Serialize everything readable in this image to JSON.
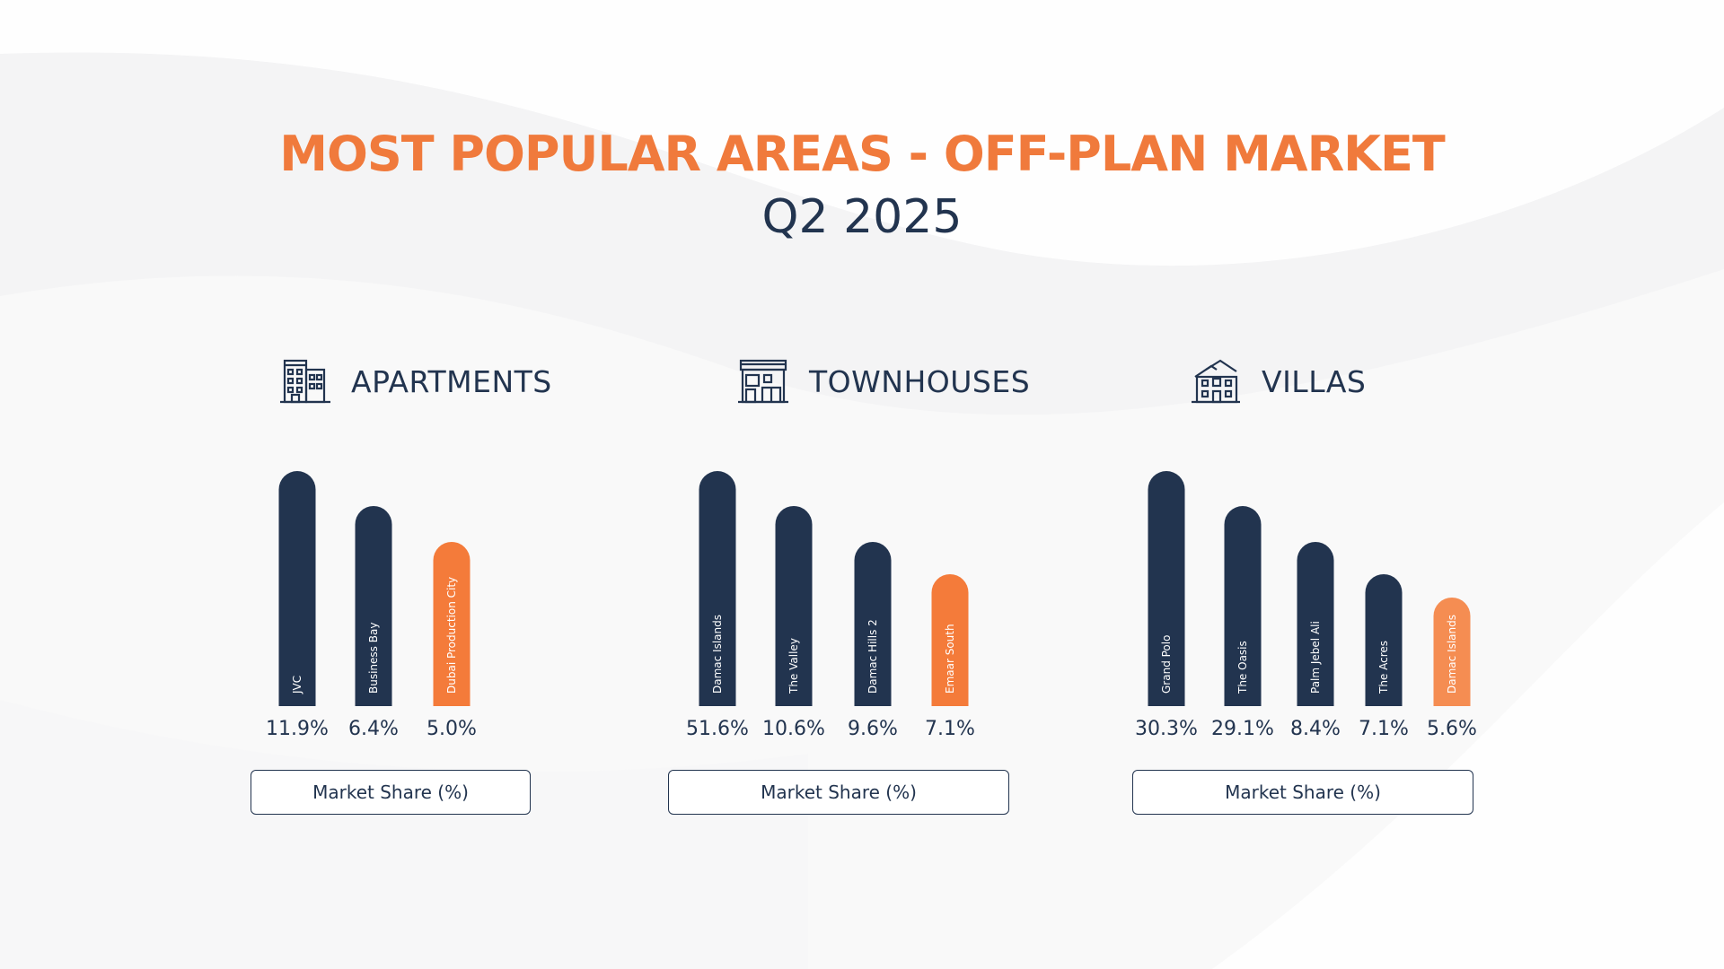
{
  "header": {
    "title": "MOST POPULAR AREAS - OFF-PLAN MARKET",
    "subtitle": "Q2 2025"
  },
  "colors": {
    "title": "#f07a3c",
    "navy": "#22344f",
    "orange": "#f47b3a",
    "light_orange": "#f58d52"
  },
  "chart_data": [
    {
      "type": "bar",
      "title": "APARTMENTS",
      "icon": "apartment-building-icon",
      "categories": [
        "JVC",
        "Business Bay",
        "Dubai Production City"
      ],
      "values": [
        11.9,
        6.4,
        5.0
      ],
      "value_labels": [
        "11.9%",
        "6.4%",
        "5.0%"
      ],
      "bar_colors": [
        "#22344f",
        "#22344f",
        "#f47b3a"
      ],
      "legend": "Market Share (%)"
    },
    {
      "type": "bar",
      "title": "TOWNHOUSES",
      "icon": "townhouse-icon",
      "categories": [
        "Damac Islands",
        "The Valley",
        "Damac Hills 2",
        "Emaar South"
      ],
      "values": [
        51.6,
        10.6,
        9.6,
        7.1
      ],
      "value_labels": [
        "51.6%",
        "10.6%",
        "9.6%",
        "7.1%"
      ],
      "bar_colors": [
        "#22344f",
        "#22344f",
        "#22344f",
        "#f47b3a"
      ],
      "legend": "Market Share (%)"
    },
    {
      "type": "bar",
      "title": "VILLAS",
      "icon": "villa-icon",
      "categories": [
        "Grand Polo",
        "The Oasis",
        "Palm Jebel Ali",
        "The Acres",
        "Damac Islands"
      ],
      "values": [
        30.3,
        29.1,
        8.4,
        7.1,
        5.6
      ],
      "value_labels": [
        "30.3%",
        "29.1%",
        "8.4%",
        "7.1%",
        "5.6%"
      ],
      "bar_colors": [
        "#22344f",
        "#22344f",
        "#22344f",
        "#22344f",
        "#f58d52"
      ],
      "legend": "Market Share (%)"
    }
  ]
}
